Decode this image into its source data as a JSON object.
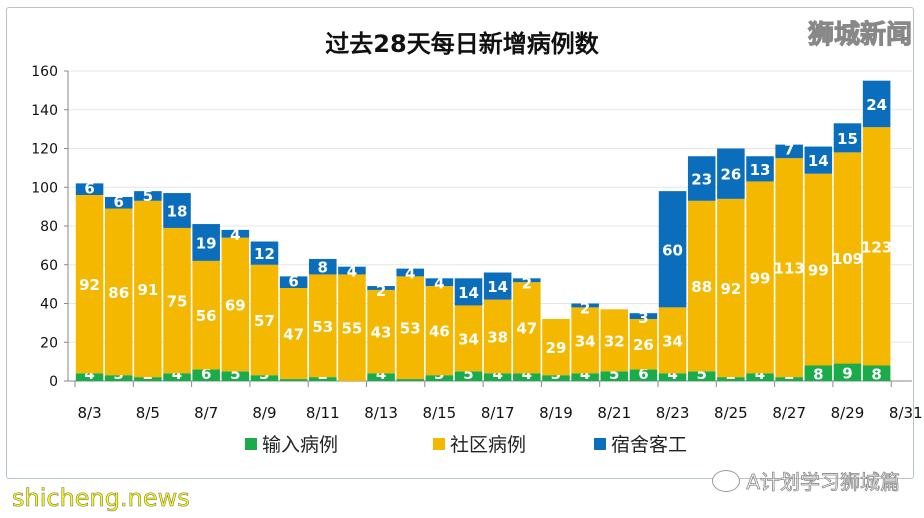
{
  "chart_data": {
    "type": "bar",
    "stacked": true,
    "title": "过去28天每日新增病例数",
    "categories": [
      "8/3",
      "8/4",
      "8/5",
      "8/6",
      "8/7",
      "8/8",
      "8/9",
      "8/10",
      "8/11",
      "8/12",
      "8/13",
      "8/14",
      "8/15",
      "8/16",
      "8/17",
      "8/18",
      "8/19",
      "8/20",
      "8/21",
      "8/22",
      "8/23",
      "8/24",
      "8/25",
      "8/26",
      "8/27",
      "8/28",
      "8/29",
      "8/30"
    ],
    "x_tick_labels": [
      "8/3",
      "8/5",
      "8/7",
      "8/9",
      "8/11",
      "8/13",
      "8/15",
      "8/17",
      "8/19",
      "8/21",
      "8/23",
      "8/25",
      "8/27",
      "8/29",
      "8/31"
    ],
    "series": [
      {
        "name": "输入病例",
        "color": "#1aab4b",
        "values": [
          4,
          3,
          2,
          4,
          6,
          5,
          3,
          1,
          2,
          0,
          4,
          1,
          3,
          5,
          4,
          4,
          3,
          4,
          5,
          6,
          4,
          5,
          2,
          4,
          2,
          8,
          9,
          8
        ]
      },
      {
        "name": "社区病例",
        "color": "#f5b800",
        "values": [
          92,
          86,
          91,
          75,
          56,
          69,
          57,
          47,
          53,
          55,
          43,
          53,
          46,
          34,
          38,
          47,
          29,
          34,
          32,
          26,
          34,
          88,
          92,
          99,
          113,
          99,
          109,
          123
        ]
      },
      {
        "name": "宿舍客工",
        "color": "#0a6ebd",
        "values": [
          6,
          6,
          5,
          18,
          19,
          4,
          12,
          6,
          8,
          4,
          2,
          4,
          4,
          14,
          14,
          2,
          0,
          2,
          0,
          3,
          60,
          23,
          26,
          13,
          7,
          14,
          15,
          24
        ]
      }
    ],
    "ylim": [
      0,
      160
    ],
    "yticks": [
      0,
      20,
      40,
      60,
      80,
      100,
      120,
      140,
      160
    ],
    "grid": true,
    "legend": "bottom"
  },
  "watermarks": {
    "top_right": "狮城新闻",
    "bottom_left": "shicheng.news",
    "bottom_right": "A计划学习狮城篇"
  }
}
